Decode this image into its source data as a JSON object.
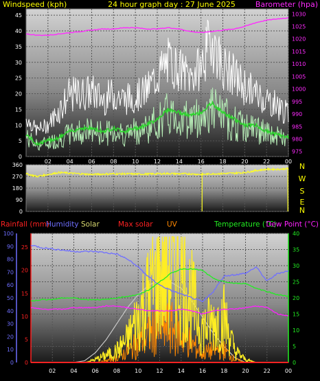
{
  "title": "24 hour graph day : 27 June 2025",
  "colors": {
    "wind_avg": "#2fd42f",
    "wind_avg_band": "#b9f0b9",
    "wind_gust": "#ffffff",
    "barometer": "#ff2bff",
    "direction": "#ffff22",
    "rain": "#ff2222",
    "humidity": "#6f6fff",
    "solar": "#d9d970",
    "max_solar": "#c8c8c8",
    "uv": "#ff8800",
    "temperature": "#22ee22",
    "dew_point": "#ff22ff",
    "axis_label": "#ffff00"
  },
  "x_ticks": [
    "02",
    "04",
    "06",
    "08",
    "10",
    "12",
    "14",
    "16",
    "18",
    "20",
    "22",
    "00"
  ],
  "compass": [
    "N",
    "W",
    "S",
    "E",
    "N"
  ],
  "chart_data": [
    {
      "type": "line",
      "panel": "wind-pressure",
      "title": "24 hour graph day : 27 June 2025",
      "y_left_label": "Windspeed (kph)",
      "y_right_label": "Barometer (hpa)",
      "y_left_ticks": [
        "45",
        "40",
        "35",
        "30",
        "25",
        "20",
        "15",
        "10",
        "5",
        "0"
      ],
      "y_right_ticks": [
        "1030",
        "1025",
        "1020",
        "1015",
        "1010",
        "1005",
        "1000",
        "995",
        "990",
        "985",
        "980",
        "975"
      ],
      "y_left_range": [
        0,
        47
      ],
      "y_right_range": [
        973,
        1032
      ],
      "x_hours": [
        0,
        1,
        2,
        3,
        4,
        5,
        6,
        7,
        8,
        9,
        10,
        11,
        12,
        13,
        14,
        15,
        16,
        17,
        18,
        19,
        20,
        21,
        22,
        23,
        24
      ],
      "series": [
        {
          "name": "Windspeed (kph)",
          "axis": "left",
          "values": [
            7,
            4,
            5,
            6,
            8,
            9,
            9,
            8,
            9,
            8,
            9,
            10,
            12,
            15,
            14,
            13,
            14,
            17,
            14,
            12,
            10,
            10,
            8,
            7,
            6
          ]
        },
        {
          "name": "",
          "axis": "left",
          "values": [
            14,
            10,
            12,
            18,
            24,
            24,
            25,
            22,
            24,
            22,
            23,
            25,
            31,
            36,
            33,
            30,
            34,
            46,
            34,
            31,
            27,
            24,
            22,
            20,
            16
          ]
        },
        {
          "name": "Barometer (hpa)",
          "axis": "right",
          "values": [
            1022,
            1021.5,
            1021.5,
            1022,
            1022.5,
            1023,
            1023.5,
            1024,
            1024,
            1024.5,
            1024.5,
            1024,
            1024,
            1024.5,
            1024,
            1023,
            1022.5,
            1023,
            1023.5,
            1024,
            1025,
            1026.5,
            1027.5,
            1028,
            1028.5
          ]
        }
      ]
    },
    {
      "type": "line",
      "panel": "wind-direction",
      "y_ticks": [
        "360",
        "270",
        "180",
        "90",
        "0"
      ],
      "y_range": [
        0,
        360
      ],
      "x_hours": [
        0,
        1,
        2,
        3,
        4,
        5,
        6,
        7,
        8,
        9,
        10,
        11,
        12,
        13,
        14,
        15,
        16,
        17,
        18,
        19,
        20,
        21,
        22,
        23,
        24
      ],
      "series": [
        {
          "name": "Wind direction",
          "values": [
            290,
            270,
            285,
            300,
            295,
            290,
            285,
            288,
            290,
            290,
            288,
            288,
            290,
            292,
            290,
            290,
            285,
            290,
            292,
            295,
            300,
            315,
            325,
            325,
            330
          ]
        }
      ]
    },
    {
      "type": "line",
      "panel": "rain-humidity-solar-temperature",
      "legend": [
        "Rainfall (mm)",
        "Humidity",
        "Solar",
        "Max solar",
        "UV",
        "Temperature (°C)",
        "Dew Point (°C)"
      ],
      "y_rain_ticks": [
        "25",
        "20",
        "15",
        "10",
        "5",
        "0"
      ],
      "y_humidity_ticks": [
        "100",
        "90",
        "80",
        "70",
        "60",
        "50",
        "40",
        "30",
        "20",
        "10",
        "0"
      ],
      "y_temp_ticks": [
        "40",
        "35",
        "30",
        "25",
        "20",
        "15",
        "10",
        "5",
        "0"
      ],
      "y_humidity_range": [
        0,
        100
      ],
      "y_temp_range": [
        0,
        40
      ],
      "x_hours": [
        0,
        1,
        2,
        3,
        4,
        5,
        6,
        7,
        8,
        9,
        10,
        11,
        12,
        13,
        14,
        15,
        16,
        17,
        18,
        19,
        20,
        21,
        22,
        23,
        24
      ],
      "series": [
        {
          "name": "Rainfall (mm)",
          "axis": "rain",
          "values": [
            0,
            0,
            0,
            0,
            0,
            0,
            0,
            0,
            0,
            0,
            0,
            0,
            0,
            0,
            0,
            0,
            0,
            0,
            0,
            0,
            0,
            0,
            0,
            0,
            0
          ]
        },
        {
          "name": "Humidity",
          "axis": "humidity",
          "values": [
            91,
            89,
            88,
            87,
            86,
            86,
            86,
            85,
            84,
            80,
            74,
            66,
            60,
            56,
            53,
            50,
            47,
            55,
            67,
            68,
            69,
            74,
            63,
            69,
            71
          ]
        },
        {
          "name": "Temperature (°C)",
          "axis": "temp",
          "values": [
            19,
            19.5,
            19.5,
            20,
            20,
            19.5,
            19.5,
            19.5,
            20,
            20.5,
            21,
            22.5,
            25,
            27.5,
            29,
            29,
            28.5,
            26,
            25,
            24.5,
            24.5,
            23,
            22,
            21,
            20.5
          ]
        },
        {
          "name": "Dew Point (°C)",
          "axis": "temp",
          "values": [
            17,
            16.5,
            16.5,
            16.5,
            17,
            17,
            17,
            17.5,
            17.5,
            17,
            16.5,
            16,
            16,
            16,
            16.5,
            16,
            15,
            16,
            16.5,
            16.5,
            17,
            17.5,
            17,
            15,
            14.5
          ]
        },
        {
          "name": "Max solar",
          "axis": "temp",
          "values": [
            0,
            0,
            0,
            0,
            0,
            0.5,
            3,
            7,
            12,
            17,
            21,
            24,
            25.5,
            25,
            23,
            19,
            14,
            9,
            5,
            1.5,
            0,
            0,
            0,
            0,
            0
          ]
        },
        {
          "name": "Solar",
          "axis": "temp",
          "values": [
            0,
            0,
            0,
            0,
            0,
            0,
            1,
            2.5,
            4,
            8,
            16,
            24,
            31,
            34,
            31,
            22,
            12,
            14,
            16,
            4,
            1,
            0,
            0,
            0,
            0
          ]
        },
        {
          "name": "UV",
          "axis": "temp",
          "values": [
            0,
            0,
            0,
            0,
            0,
            0,
            0,
            0.5,
            1.5,
            3.5,
            6,
            9,
            11,
            11,
            9,
            6,
            3,
            4,
            4,
            1,
            0,
            0,
            0,
            0,
            0
          ]
        }
      ]
    }
  ]
}
